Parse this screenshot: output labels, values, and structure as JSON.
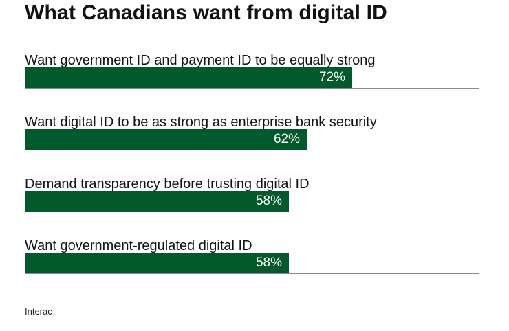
{
  "title": "What Canadians want from digital ID",
  "source": "Interac",
  "colors": {
    "bar": "#005a2b",
    "bar_text": "#ffffff",
    "axis_line": "#8c8c8c"
  },
  "chart_data": {
    "type": "bar",
    "orientation": "horizontal",
    "title": "What Canadians want from digital ID",
    "categories": [
      "Want government ID and payment ID to be equally strong",
      "Want digital ID to be as strong as enterprise bank security",
      "Demand transparency before trusting digital ID",
      "Want government-regulated digital ID"
    ],
    "values": [
      72,
      62,
      58,
      58
    ],
    "value_labels": [
      "72%",
      "62%",
      "58%",
      "58%"
    ],
    "unit": "%",
    "xlim": [
      0,
      100
    ],
    "xlabel": "",
    "ylabel": "",
    "grid": false
  }
}
